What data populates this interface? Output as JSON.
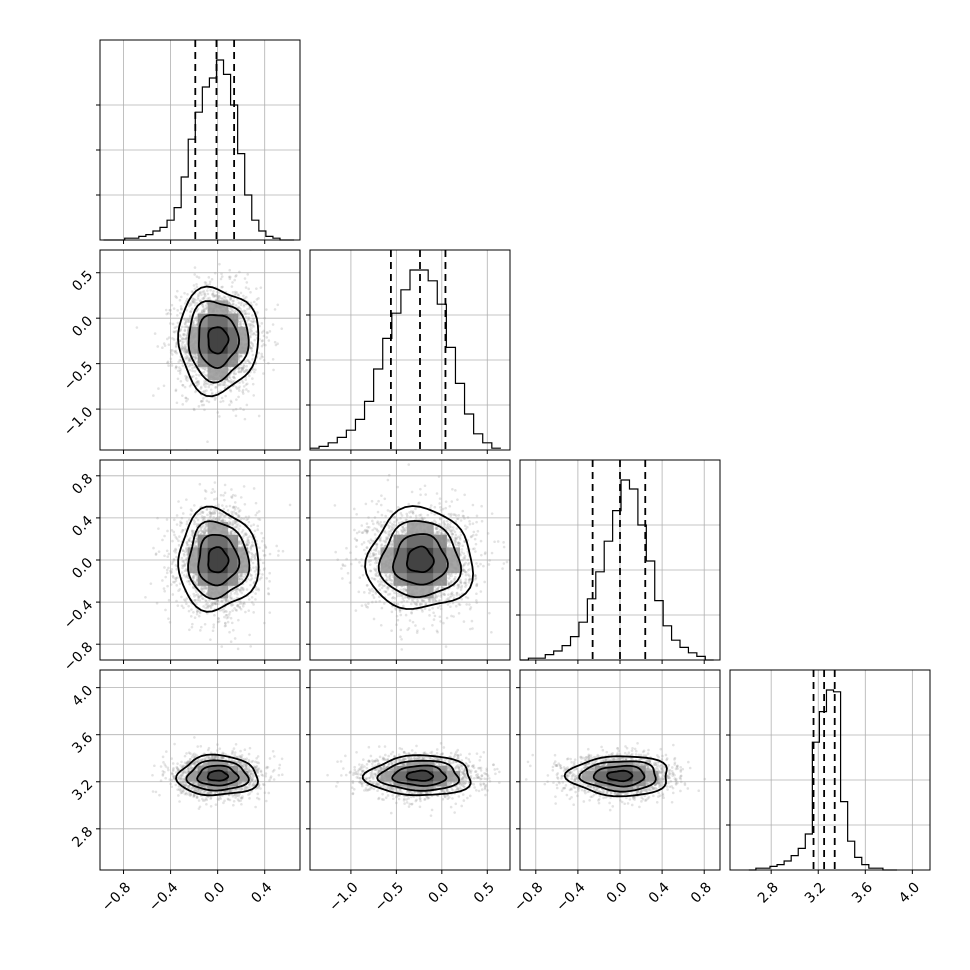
{
  "chart_data": {
    "type": "corner",
    "grid": true,
    "parameters": [
      {
        "range": [
          -1.0,
          0.7
        ],
        "ticks": [
          -0.8,
          -0.4,
          0.0,
          0.4
        ],
        "tick_labels": [
          "−0.8",
          "−0.4",
          "0.0",
          "0.4"
        ],
        "mean": 0.0,
        "std": 0.17,
        "quantiles": [
          -0.19,
          -0.01,
          0.14
        ],
        "hist_bins": [
          -0.97,
          -0.91,
          -0.85,
          -0.79,
          -0.73,
          -0.67,
          -0.61,
          -0.55,
          -0.49,
          -0.43,
          -0.37,
          -0.31,
          -0.25,
          -0.19,
          -0.13,
          -0.07,
          -0.01,
          0.05,
          0.11,
          0.17,
          0.23,
          0.29,
          0.35,
          0.41,
          0.47,
          0.53,
          0.59,
          0.65
        ],
        "hist_counts": [
          0,
          0,
          0,
          1,
          1,
          2,
          3,
          5,
          7,
          11,
          18,
          35,
          56,
          71,
          85,
          90,
          100,
          92,
          75,
          48,
          25,
          11,
          5,
          2,
          1,
          0,
          0
        ]
      },
      {
        "range": [
          -1.45,
          0.75
        ],
        "ticks": [
          -1.0,
          -0.5,
          0.0,
          0.5
        ],
        "tick_labels": [
          "−1.0",
          "−0.5",
          "0.0",
          "0.5"
        ],
        "mean": -0.24,
        "std": 0.29,
        "quantiles": [
          -0.56,
          -0.24,
          0.04
        ],
        "hist_bins": [
          -1.45,
          -1.35,
          -1.25,
          -1.15,
          -1.05,
          -0.95,
          -0.85,
          -0.75,
          -0.65,
          -0.55,
          -0.45,
          -0.35,
          -0.25,
          -0.15,
          -0.05,
          0.05,
          0.15,
          0.25,
          0.35,
          0.45,
          0.55,
          0.65
        ],
        "hist_counts": [
          1,
          2,
          4,
          7,
          11,
          17,
          27,
          45,
          62,
          76,
          89,
          100,
          100,
          94,
          81,
          57,
          37,
          20,
          9,
          4,
          1
        ]
      },
      {
        "range": [
          -0.95,
          0.95
        ],
        "ticks": [
          -0.8,
          -0.4,
          0.0,
          0.4,
          0.8
        ],
        "tick_labels": [
          "−0.8",
          "−0.4",
          "0.0",
          "0.4",
          "0.8"
        ],
        "mean": 0.0,
        "std": 0.24,
        "quantiles": [
          -0.26,
          0.0,
          0.24
        ],
        "hist_bins": [
          -0.95,
          -0.87,
          -0.79,
          -0.71,
          -0.63,
          -0.55,
          -0.47,
          -0.39,
          -0.31,
          -0.23,
          -0.15,
          -0.07,
          0.01,
          0.09,
          0.17,
          0.25,
          0.33,
          0.41,
          0.49,
          0.57,
          0.65,
          0.73,
          0.81,
          0.89
        ],
        "hist_counts": [
          0,
          1,
          1,
          3,
          5,
          8,
          13,
          21,
          34,
          49,
          66,
          83,
          100,
          95,
          75,
          55,
          33,
          19,
          11,
          7,
          4,
          2,
          0
        ]
      },
      {
        "range": [
          2.45,
          4.15
        ],
        "ticks": [
          2.8,
          3.2,
          3.6,
          4.0
        ],
        "tick_labels": [
          "2.8",
          "3.2",
          "3.6",
          "4.0"
        ],
        "mean": 3.25,
        "std": 0.085,
        "quantiles": [
          3.16,
          3.25,
          3.34
        ],
        "hist_bins": [
          2.61,
          2.67,
          2.73,
          2.79,
          2.85,
          2.91,
          2.97,
          3.03,
          3.09,
          3.15,
          3.21,
          3.27,
          3.33,
          3.39,
          3.45,
          3.51,
          3.57,
          3.63,
          3.69,
          3.75,
          3.81,
          3.87
        ],
        "hist_counts": [
          0,
          1,
          1,
          2,
          3,
          5,
          8,
          12,
          20,
          71,
          88,
          100,
          99,
          38,
          16,
          7,
          3,
          1,
          1,
          0,
          0
        ]
      }
    ],
    "correlations": {
      "0-1": 0.0,
      "0-2": 0.0,
      "1-2": 0.0,
      "0-3": 0.0,
      "1-3": 0.0,
      "2-3": 0.0
    },
    "contour_levels_sigma": [
      0.5,
      1.0,
      1.5,
      2.0
    ]
  }
}
